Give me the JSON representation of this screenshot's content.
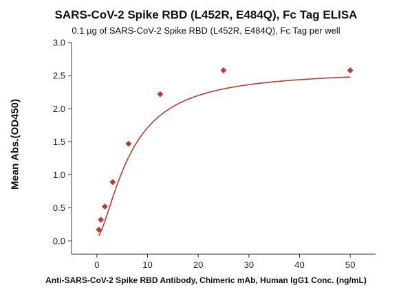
{
  "chart_data": {
    "type": "scatter",
    "title": "SARS-CoV-2 Spike RBD (L452R, E484Q), Fc Tag ELISA",
    "subtitle": "0.1 µg of SARS-CoV-2 Spike RBD (L452R, E484Q), Fc Tag per well",
    "xlabel": "Anti-SARS-CoV-2 Spike RBD Antibody, Chimeric mAb, Human IgG1 Conc. (ng/mL)",
    "ylabel": "Mean Abs.(OD450)",
    "xlim": [
      -5,
      55
    ],
    "ylim": [
      -0.2,
      3.0
    ],
    "xticks": [
      0,
      10,
      20,
      30,
      40,
      50
    ],
    "yticks": [
      0.0,
      0.5,
      1.0,
      1.5,
      2.0,
      2.5,
      3.0
    ],
    "ytick_labels": [
      "0.0",
      "0.5",
      "1.0",
      "1.5",
      "2.0",
      "2.5",
      "3.0"
    ],
    "grid": false,
    "color": "#c0392b",
    "series": [
      {
        "marker": "diamond",
        "x": [
          0.39,
          0.78,
          1.56,
          3.125,
          6.25,
          12.5,
          25,
          50
        ],
        "y": [
          0.17,
          0.32,
          0.52,
          0.89,
          1.47,
          2.22,
          2.58,
          2.58
        ]
      }
    ],
    "fit": {
      "type": "four-parameter logistic",
      "bottom": 0.05,
      "top": 2.585,
      "ec50": 6.6,
      "hill": 1.55
    }
  }
}
